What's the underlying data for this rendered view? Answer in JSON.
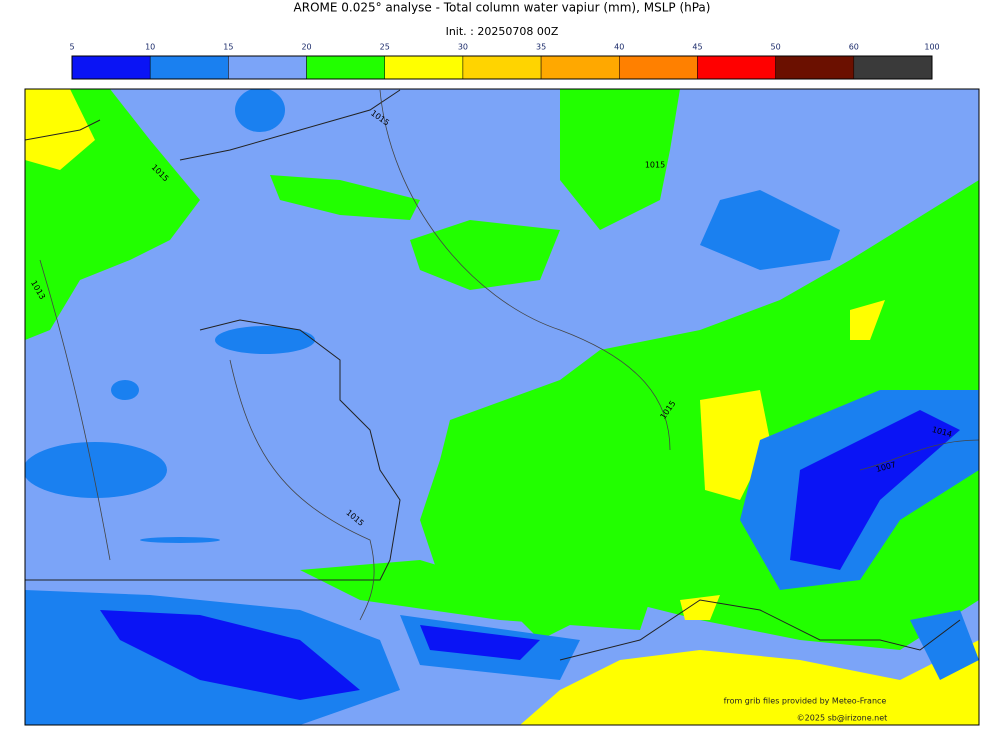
{
  "title": "AROME 0.025° analyse - Total column water vapiur (mm), MSLP (hPa)",
  "init": "Init. : 20250708 00Z",
  "colorbar": {
    "ticks": [
      5,
      10,
      15,
      20,
      25,
      30,
      35,
      40,
      45,
      50,
      60,
      100
    ],
    "colors": [
      "#0a14f5",
      "#1a80f0",
      "#7ba4f8",
      "#22ff00",
      "#ffff00",
      "#ffd400",
      "#ffa800",
      "#ff8000",
      "#ff0000",
      "#6b1000",
      "#3a3a3a"
    ]
  },
  "isobar_labels": [
    "1015",
    "1015",
    "1013",
    "1015",
    "1015",
    "1015",
    "1014",
    "1007"
  ],
  "credits": [
    "from grib files provided by Meteo-France",
    "©2025 sb@irizone.net"
  ]
}
